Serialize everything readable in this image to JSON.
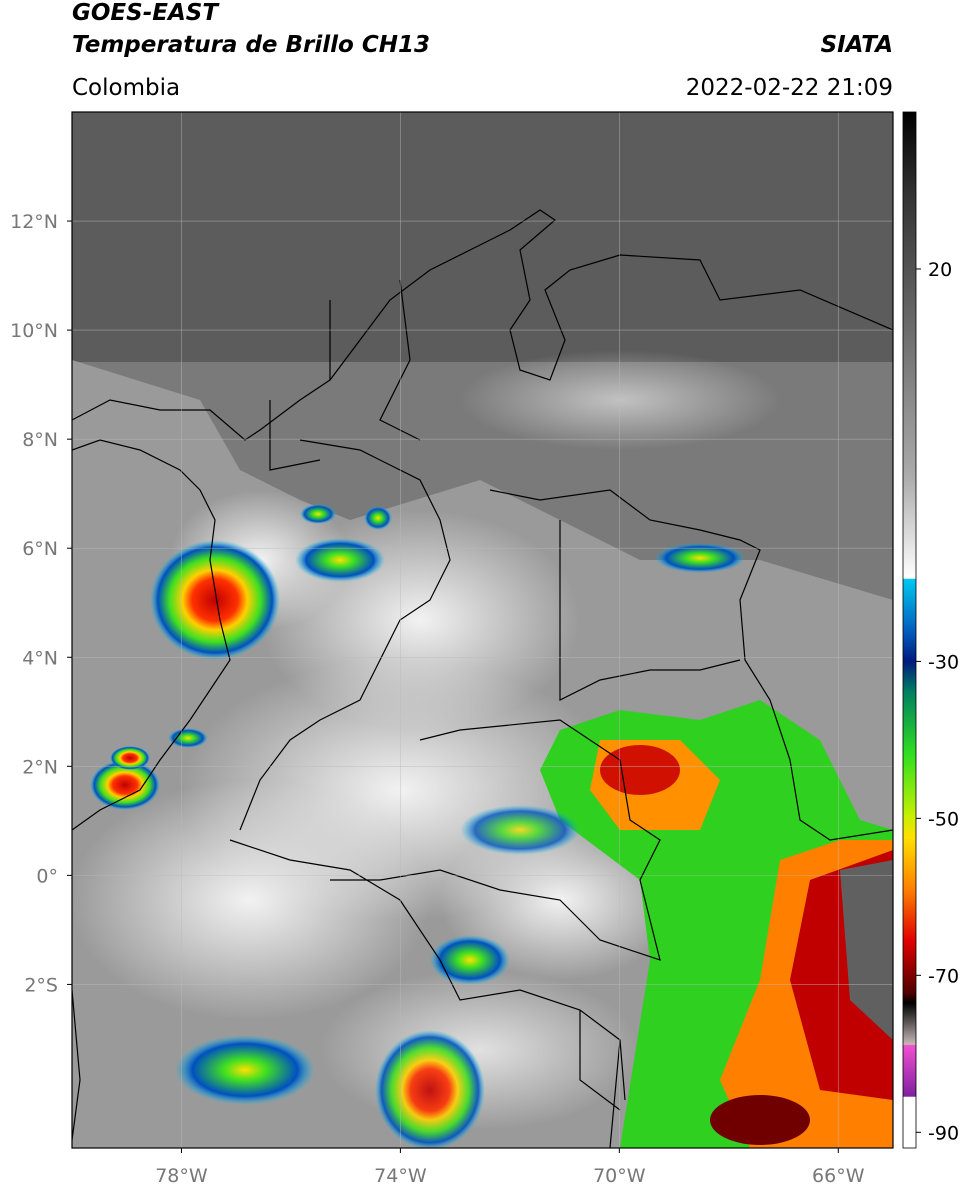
{
  "header": {
    "title": "GOES-EAST",
    "subtitle": "Temperatura de Brillo CH13",
    "source": "SIATA",
    "region": "Colombia",
    "datetime": "2022-02-22 21:09"
  },
  "map": {
    "lon_lim": [
      -80,
      -65
    ],
    "lat_lim": [
      -5,
      14
    ],
    "lat_ticks": [
      {
        "value": 12,
        "label": "12°N"
      },
      {
        "value": 10,
        "label": "10°N"
      },
      {
        "value": 8,
        "label": "8°N"
      },
      {
        "value": 6,
        "label": "6°N"
      },
      {
        "value": 4,
        "label": "4°N"
      },
      {
        "value": 2,
        "label": "2°N"
      },
      {
        "value": 0,
        "label": "0°"
      },
      {
        "value": -2,
        "label": "2°S"
      }
    ],
    "lon_ticks": [
      {
        "value": -78,
        "label": "78°W"
      },
      {
        "value": -74,
        "label": "74°W"
      },
      {
        "value": -70,
        "label": "70°W"
      },
      {
        "value": -66,
        "label": "66°W"
      }
    ]
  },
  "colorbar": {
    "lim": [
      -92,
      40
    ],
    "ticks": [
      20,
      -30,
      -50,
      -70,
      -90
    ]
  }
}
